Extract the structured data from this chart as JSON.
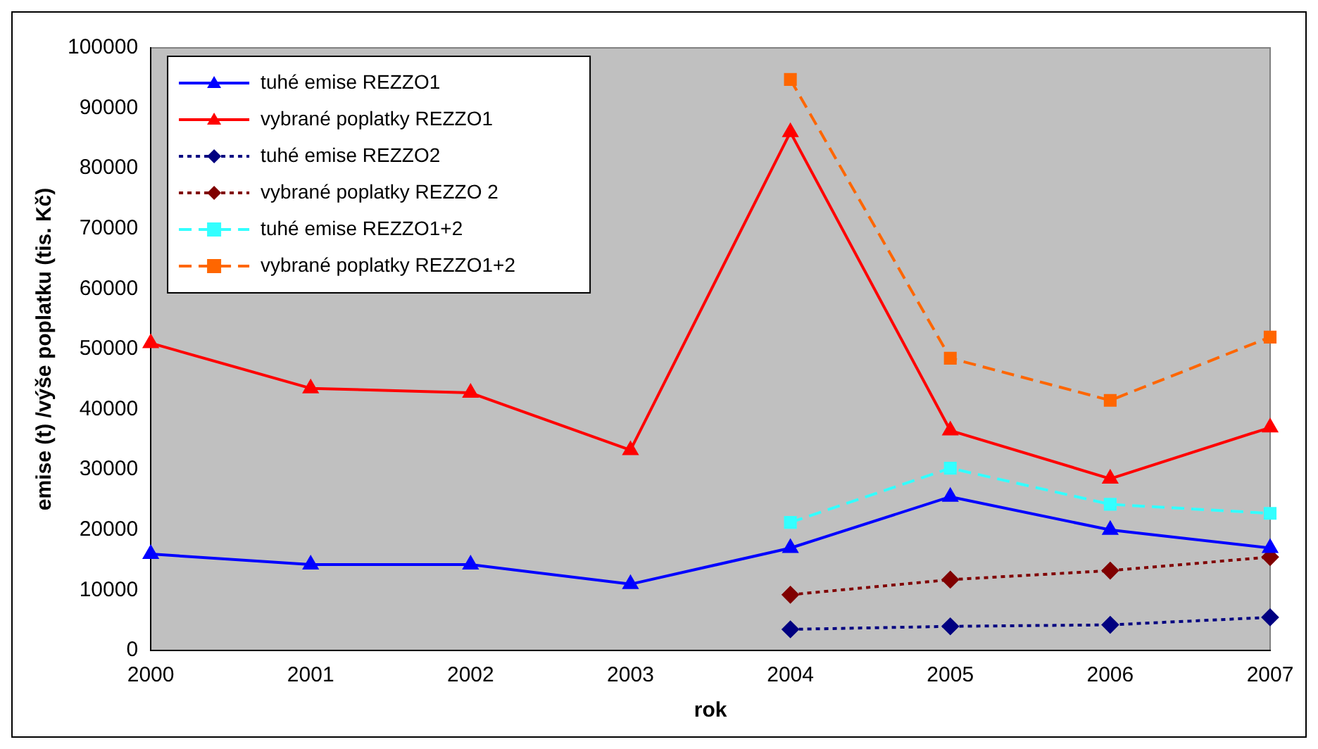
{
  "chart_data": {
    "type": "line",
    "xlabel": "rok",
    "ylabel": "emise (t) /výše poplatku (tis. Kč)",
    "categories": [
      "2000",
      "2001",
      "2002",
      "2003",
      "2004",
      "2005",
      "2006",
      "2007"
    ],
    "ylim": [
      0,
      100000
    ],
    "yticks": [
      0,
      10000,
      20000,
      30000,
      40000,
      50000,
      60000,
      70000,
      80000,
      90000,
      100000
    ],
    "grid": false,
    "legend": "top left",
    "series": [
      {
        "name": "tuhé emise REZZO1",
        "color": "#0000ff",
        "marker": "triangle",
        "line_style": "solid",
        "values": [
          16000,
          14250,
          14250,
          11000,
          17000,
          25500,
          20000,
          17000
        ]
      },
      {
        "name": "vybrané poplatky REZZO1",
        "color": "#ff0000",
        "marker": "triangle",
        "line_style": "solid",
        "values": [
          51000,
          43500,
          42750,
          33250,
          86000,
          36500,
          28500,
          37000
        ]
      },
      {
        "name": "tuhé emise REZZO2",
        "color": "#000080",
        "marker": "diamond",
        "line_style": "dotted",
        "values": [
          null,
          null,
          null,
          null,
          3500,
          4000,
          4250,
          5500
        ]
      },
      {
        "name": "vybrané poplatky REZZO 2",
        "color": "#800000",
        "marker": "diamond",
        "line_style": "dotted",
        "values": [
          null,
          null,
          null,
          null,
          9250,
          11750,
          13250,
          15500
        ]
      },
      {
        "name": "tuhé emise REZZO1+2",
        "color": "#33ffff",
        "marker": "square",
        "line_style": "dashed",
        "values": [
          null,
          null,
          null,
          null,
          21250,
          30250,
          24250,
          22750
        ]
      },
      {
        "name": "vybrané poplatky REZZO1+2",
        "color": "#ff6600",
        "marker": "square",
        "line_style": "dashed",
        "values": [
          null,
          null,
          null,
          null,
          94750,
          48500,
          41500,
          52000
        ]
      }
    ]
  }
}
